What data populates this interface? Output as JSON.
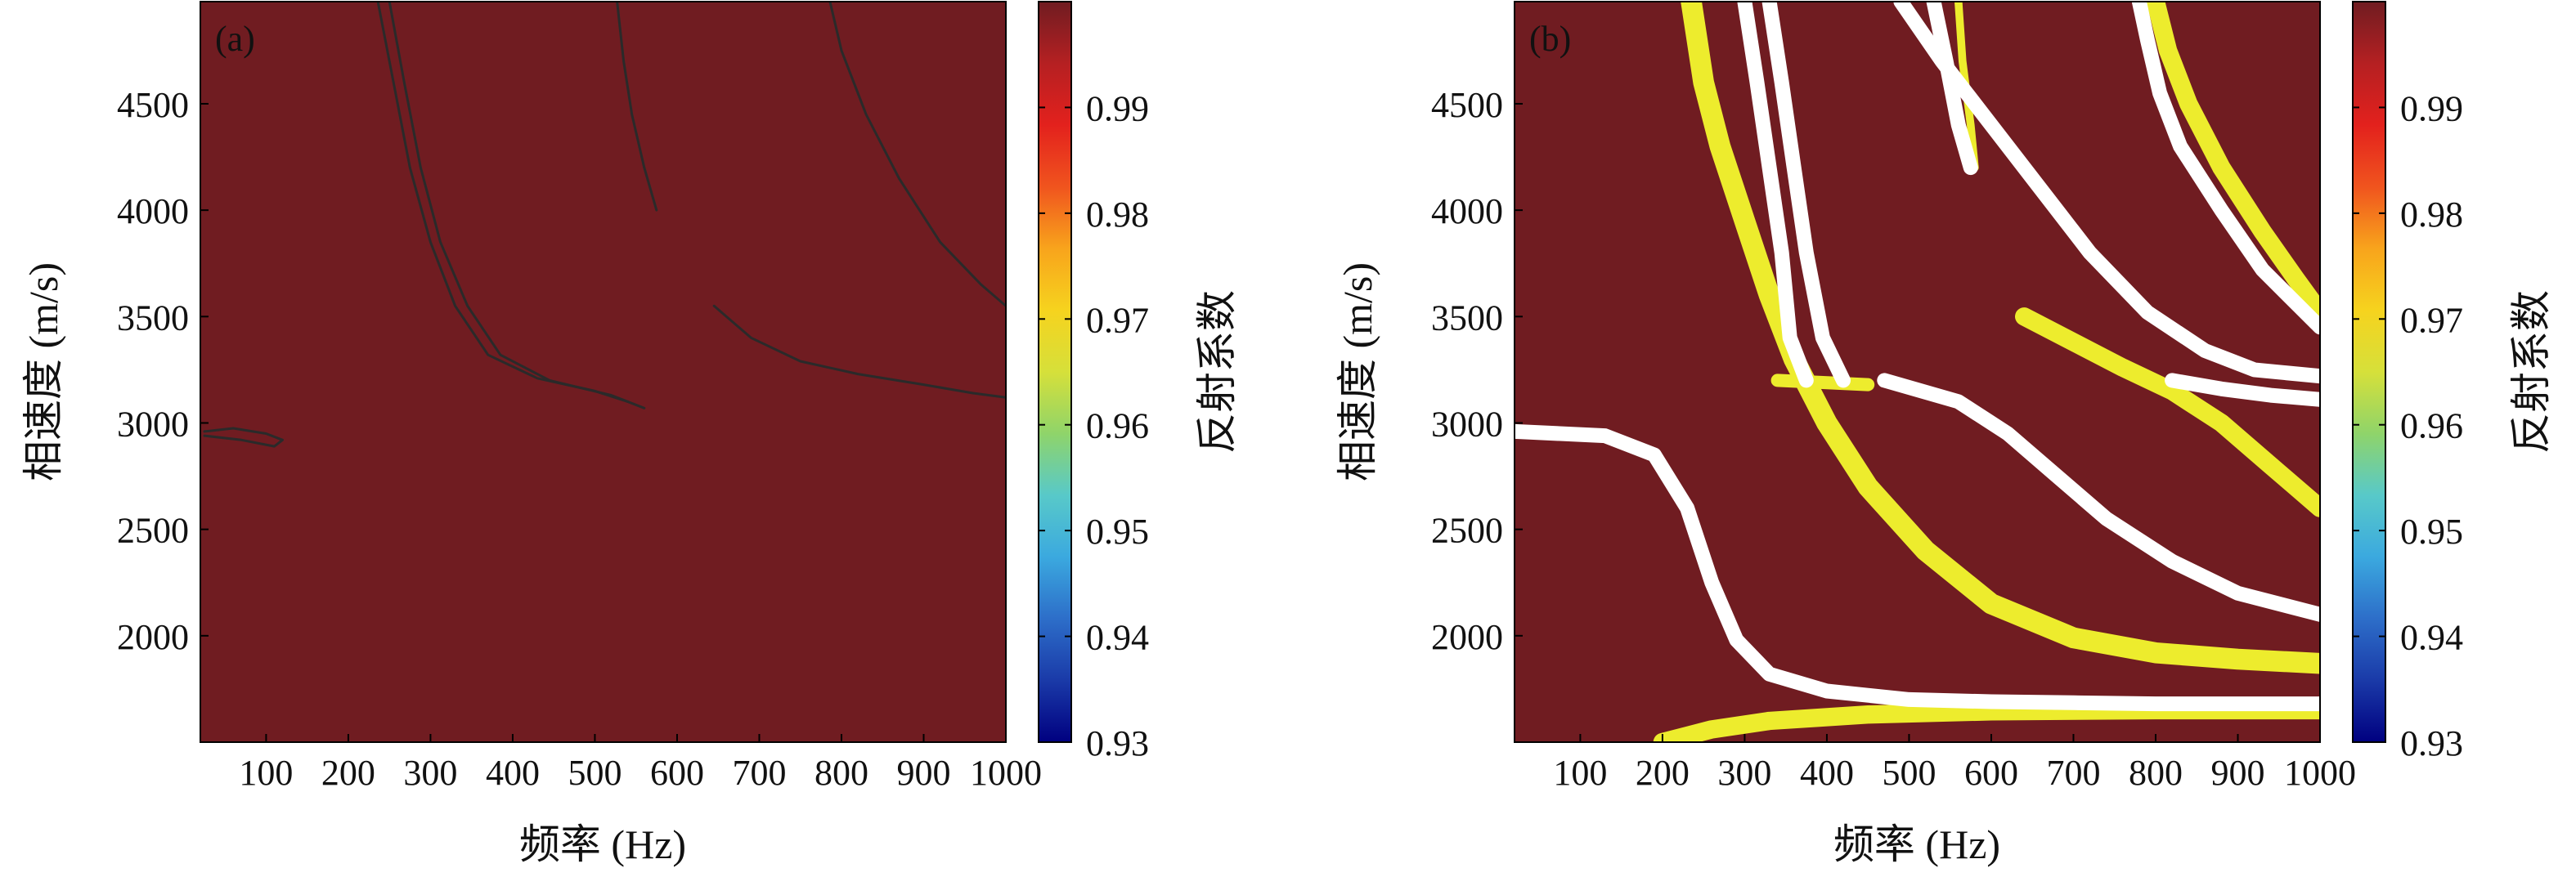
{
  "colors": {
    "background_field": "#701C21",
    "contour": "#2a2a2a",
    "white_band": "#ffffff",
    "yellow_band": "#EDEC2D",
    "colormap": [
      "#000080",
      "#1a3aa8",
      "#2d6ec9",
      "#3ba9df",
      "#58c9c9",
      "#8fd46a",
      "#d6e03a",
      "#f6d31e",
      "#f8a41c",
      "#f0541e",
      "#e3211d",
      "#b52022",
      "#701C21"
    ]
  },
  "chart_data": [
    {
      "type": "heatmap",
      "panel_label": "(a)",
      "xlabel": "频率 (Hz)",
      "ylabel": "相速度 (m/s)",
      "xlim": [
        20,
        1000
      ],
      "ylim": [
        1500,
        4980
      ],
      "xticks": [
        100,
        200,
        300,
        400,
        500,
        600,
        700,
        800,
        900,
        1000
      ],
      "yticks": [
        2000,
        2500,
        3000,
        3500,
        4000,
        4500
      ],
      "colorbar": {
        "label": "反射系数",
        "range": [
          0.93,
          1.0
        ],
        "ticks": [
          0.93,
          0.94,
          0.95,
          0.96,
          0.97,
          0.98,
          0.99
        ]
      },
      "background_value": 1.0,
      "contour_curves": [
        [
          [
            236,
            4980
          ],
          [
            255,
            4600
          ],
          [
            275,
            4200
          ],
          [
            300,
            3850
          ],
          [
            330,
            3550
          ],
          [
            370,
            3320
          ],
          [
            430,
            3210
          ],
          [
            500,
            3150
          ],
          [
            540,
            3100
          ]
        ],
        [
          [
            250,
            4980
          ],
          [
            268,
            4600
          ],
          [
            288,
            4200
          ],
          [
            312,
            3850
          ],
          [
            345,
            3550
          ],
          [
            385,
            3320
          ],
          [
            445,
            3200
          ],
          [
            520,
            3130
          ],
          [
            560,
            3070
          ]
        ],
        [
          [
            527,
            4980
          ],
          [
            535,
            4700
          ],
          [
            545,
            4450
          ],
          [
            560,
            4200
          ],
          [
            575,
            4000
          ]
        ],
        [
          [
            786,
            4980
          ],
          [
            800,
            4750
          ],
          [
            830,
            4450
          ],
          [
            870,
            4150
          ],
          [
            920,
            3850
          ],
          [
            970,
            3650
          ],
          [
            1000,
            3550
          ]
        ],
        [
          [
            645,
            3550
          ],
          [
            690,
            3400
          ],
          [
            750,
            3290
          ],
          [
            820,
            3230
          ],
          [
            900,
            3180
          ],
          [
            960,
            3140
          ],
          [
            1000,
            3120
          ]
        ],
        [
          [
            25,
            2960
          ],
          [
            60,
            2975
          ],
          [
            100,
            2950
          ],
          [
            120,
            2920
          ],
          [
            110,
            2890
          ],
          [
            70,
            2920
          ],
          [
            25,
            2940
          ]
        ]
      ]
    },
    {
      "type": "heatmap",
      "panel_label": "(b)",
      "xlabel": "频率 (Hz)",
      "ylabel": "相速度 (m/s)",
      "xlim": [
        20,
        1000
      ],
      "ylim": [
        1500,
        4980
      ],
      "xticks": [
        100,
        200,
        300,
        400,
        500,
        600,
        700,
        800,
        900,
        1000
      ],
      "yticks": [
        2000,
        2500,
        3000,
        3500,
        4000,
        4500
      ],
      "colorbar": {
        "label": "反射系数",
        "range": [
          0.93,
          1.0
        ],
        "ticks": [
          0.93,
          0.94,
          0.95,
          0.96,
          0.97,
          0.98,
          0.99
        ]
      },
      "background_value": 1.0,
      "white_curves": [
        [
          [
            20,
            2960
          ],
          [
            130,
            2940
          ],
          [
            190,
            2850
          ],
          [
            230,
            2600
          ],
          [
            260,
            2250
          ],
          [
            290,
            1980
          ],
          [
            330,
            1820
          ],
          [
            400,
            1740
          ],
          [
            500,
            1700
          ],
          [
            600,
            1690
          ],
          [
            700,
            1685
          ],
          [
            800,
            1680
          ],
          [
            900,
            1680
          ],
          [
            1000,
            1680
          ]
        ],
        [
          [
            300,
            4980
          ],
          [
            315,
            4600
          ],
          [
            330,
            4200
          ],
          [
            345,
            3800
          ],
          [
            355,
            3400
          ],
          [
            375,
            3200
          ]
        ],
        [
          [
            330,
            4980
          ],
          [
            345,
            4600
          ],
          [
            360,
            4200
          ],
          [
            375,
            3800
          ],
          [
            395,
            3400
          ],
          [
            420,
            3200
          ]
        ],
        [
          [
            470,
            3200
          ],
          [
            560,
            3100
          ],
          [
            620,
            2950
          ],
          [
            680,
            2750
          ],
          [
            740,
            2550
          ],
          [
            820,
            2350
          ],
          [
            900,
            2200
          ],
          [
            1000,
            2100
          ]
        ],
        [
          [
            490,
            4980
          ],
          [
            540,
            4700
          ],
          [
            600,
            4400
          ],
          [
            660,
            4100
          ],
          [
            720,
            3800
          ],
          [
            790,
            3520
          ],
          [
            860,
            3340
          ],
          [
            920,
            3250
          ],
          [
            1000,
            3220
          ]
        ],
        [
          [
            530,
            4980
          ],
          [
            545,
            4700
          ],
          [
            560,
            4400
          ],
          [
            575,
            4200
          ]
        ],
        [
          [
            780,
            4980
          ],
          [
            790,
            4800
          ],
          [
            805,
            4550
          ],
          [
            830,
            4300
          ],
          [
            880,
            4000
          ],
          [
            930,
            3720
          ],
          [
            1000,
            3450
          ]
        ],
        [
          [
            820,
            3200
          ],
          [
            880,
            3160
          ],
          [
            940,
            3130
          ],
          [
            1000,
            3110
          ]
        ]
      ],
      "yellow_curves": [
        [
          [
            200,
            1500
          ],
          [
            260,
            1560
          ],
          [
            330,
            1600
          ],
          [
            450,
            1630
          ],
          [
            600,
            1645
          ],
          [
            800,
            1650
          ],
          [
            1000,
            1650
          ]
        ],
        [
          [
            235,
            4980
          ],
          [
            250,
            4600
          ],
          [
            270,
            4300
          ],
          [
            300,
            3950
          ],
          [
            330,
            3600
          ],
          [
            360,
            3300
          ],
          [
            400,
            3000
          ],
          [
            450,
            2700
          ],
          [
            520,
            2400
          ],
          [
            600,
            2150
          ],
          [
            700,
            1990
          ],
          [
            800,
            1920
          ],
          [
            900,
            1890
          ],
          [
            1000,
            1870
          ]
        ],
        [
          [
            340,
            3200
          ],
          [
            450,
            3180
          ]
        ],
        [
          [
            560,
            4980
          ],
          [
            565,
            4700
          ],
          [
            575,
            4400
          ],
          [
            580,
            4200
          ]
        ],
        [
          [
            640,
            3500
          ],
          [
            700,
            3380
          ],
          [
            760,
            3260
          ],
          [
            820,
            3150
          ],
          [
            880,
            3000
          ],
          [
            940,
            2800
          ],
          [
            1000,
            2600
          ]
        ],
        [
          [
            800,
            4980
          ],
          [
            815,
            4750
          ],
          [
            840,
            4500
          ],
          [
            880,
            4200
          ],
          [
            930,
            3900
          ],
          [
            970,
            3680
          ],
          [
            1000,
            3520
          ]
        ]
      ],
      "yellow_widths": [
        14,
        16,
        10,
        6,
        14,
        14
      ]
    }
  ]
}
